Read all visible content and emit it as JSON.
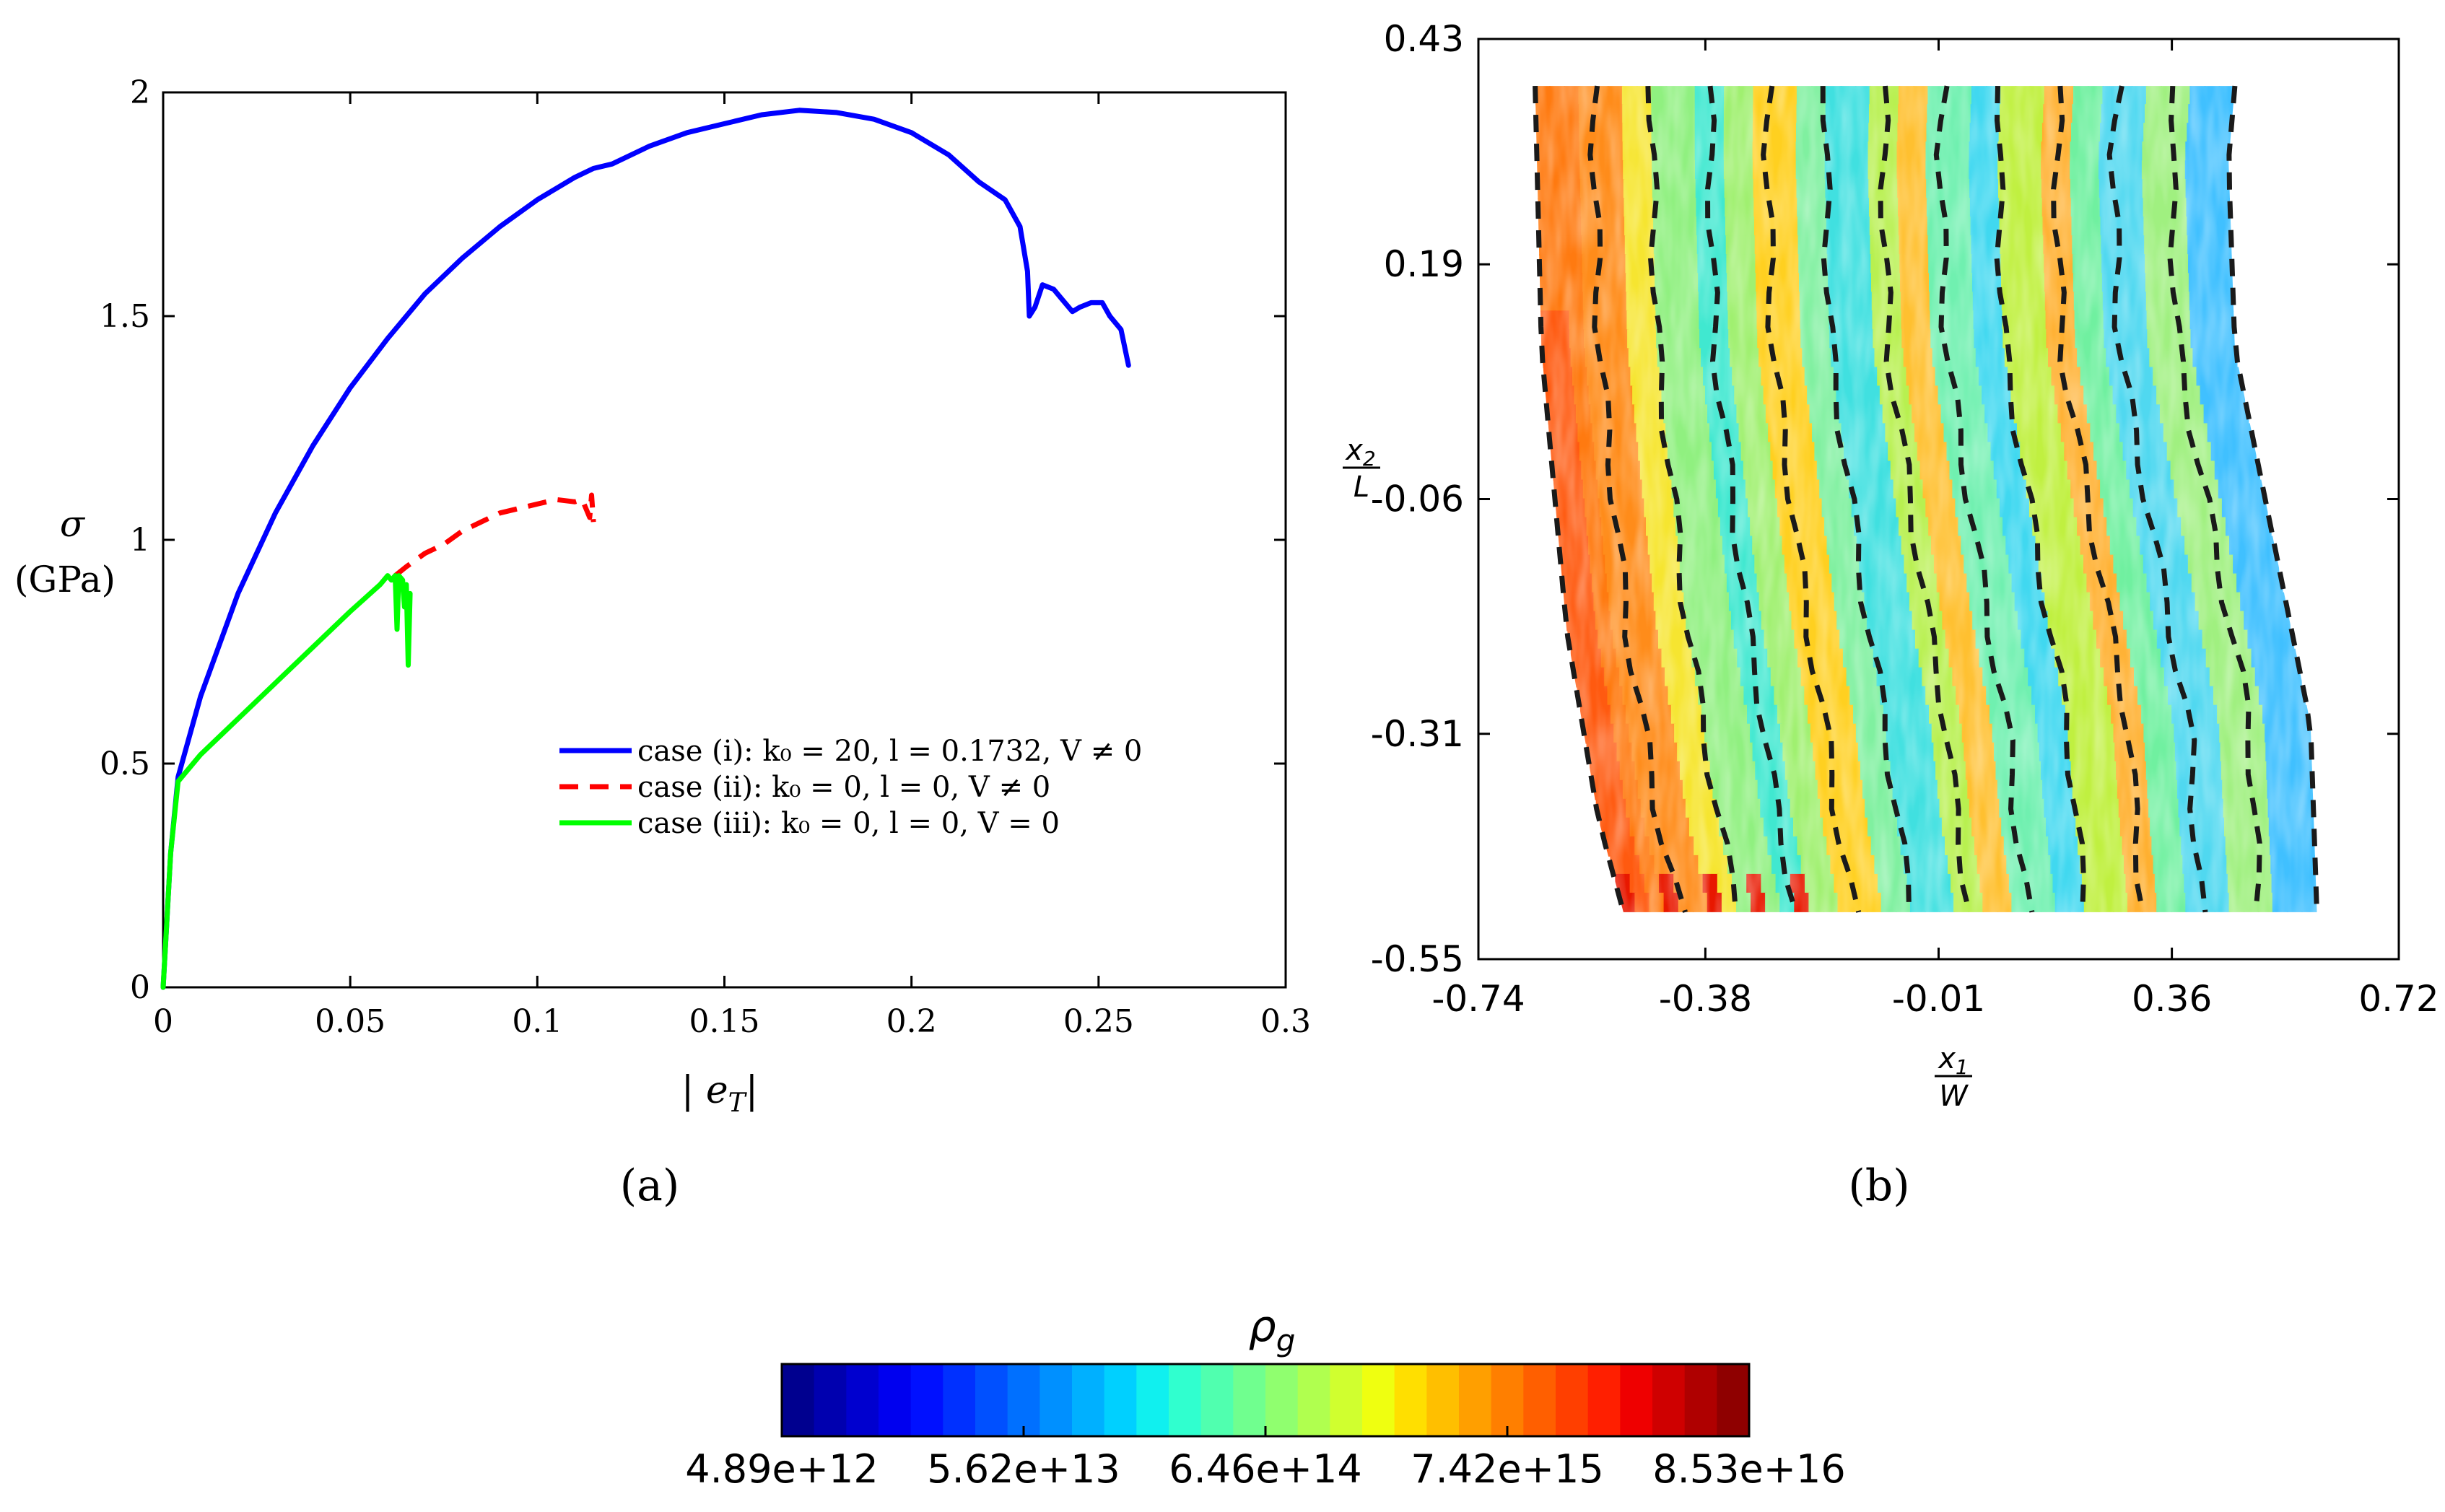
{
  "panel_labels": {
    "a": "(a)",
    "b": "(b)"
  },
  "chart_data": [
    {
      "type": "line",
      "title": "",
      "xlabel": "|e_T|",
      "ylabel": {
        "symbol": "σ",
        "unit": "(GPa)"
      },
      "xlim": [
        0,
        0.3
      ],
      "ylim": [
        0,
        2
      ],
      "xticks": [
        "0",
        "0.05",
        "0.1",
        "0.15",
        "0.2",
        "0.25",
        "0.3"
      ],
      "yticks": [
        "0",
        "0.5",
        "1",
        "1.5",
        "2"
      ],
      "legend_position": "lower-right",
      "series": [
        {
          "name": "case (i): k0 = 20, l = 0.1732, V ≠ 0",
          "legend_label": "case (i):  k₀ = 20, l = 0.1732, V ≠ 0",
          "color": "#0000ff",
          "style": "solid",
          "points": [
            [
              0,
              0
            ],
            [
              0.002,
              0.3
            ],
            [
              0.004,
              0.47
            ],
            [
              0.01,
              0.65
            ],
            [
              0.02,
              0.88
            ],
            [
              0.03,
              1.06
            ],
            [
              0.04,
              1.21
            ],
            [
              0.05,
              1.34
            ],
            [
              0.06,
              1.45
            ],
            [
              0.07,
              1.55
            ],
            [
              0.08,
              1.63
            ],
            [
              0.09,
              1.7
            ],
            [
              0.1,
              1.76
            ],
            [
              0.11,
              1.81
            ],
            [
              0.115,
              1.83
            ],
            [
              0.12,
              1.84
            ],
            [
              0.13,
              1.88
            ],
            [
              0.14,
              1.91
            ],
            [
              0.15,
              1.93
            ],
            [
              0.16,
              1.95
            ],
            [
              0.17,
              1.96
            ],
            [
              0.18,
              1.955
            ],
            [
              0.19,
              1.94
            ],
            [
              0.2,
              1.91
            ],
            [
              0.21,
              1.86
            ],
            [
              0.218,
              1.8
            ],
            [
              0.225,
              1.76
            ],
            [
              0.229,
              1.7
            ],
            [
              0.231,
              1.6
            ],
            [
              0.2315,
              1.5
            ],
            [
              0.233,
              1.52
            ],
            [
              0.235,
              1.57
            ],
            [
              0.238,
              1.56
            ],
            [
              0.24,
              1.54
            ],
            [
              0.243,
              1.51
            ],
            [
              0.245,
              1.52
            ],
            [
              0.248,
              1.53
            ],
            [
              0.251,
              1.53
            ],
            [
              0.253,
              1.5
            ],
            [
              0.256,
              1.47
            ],
            [
              0.258,
              1.39
            ]
          ]
        },
        {
          "name": "case (ii): k0 = 0, l = 0, V ≠ 0",
          "legend_label": "case (ii):  k₀ = 0, l = 0, V ≠ 0",
          "color": "#ff0000",
          "style": "dashed",
          "points": [
            [
              0.062,
              0.92
            ],
            [
              0.065,
              0.94
            ],
            [
              0.07,
              0.97
            ],
            [
              0.075,
              0.99
            ],
            [
              0.08,
              1.02
            ],
            [
              0.085,
              1.04
            ],
            [
              0.09,
              1.06
            ],
            [
              0.095,
              1.07
            ],
            [
              0.1,
              1.08
            ],
            [
              0.105,
              1.09
            ],
            [
              0.11,
              1.085
            ],
            [
              0.112,
              1.09
            ],
            [
              0.114,
              1.05
            ],
            [
              0.1145,
              1.1
            ],
            [
              0.115,
              1.04
            ]
          ]
        },
        {
          "name": "case (iii): k0 = 0, l = 0, V = 0",
          "legend_label": "case (iii):  k₀ = 0, l = 0, V = 0",
          "color": "#00ff00",
          "style": "solid",
          "points": [
            [
              0,
              0
            ],
            [
              0.002,
              0.3
            ],
            [
              0.004,
              0.46
            ],
            [
              0.01,
              0.52
            ],
            [
              0.02,
              0.6
            ],
            [
              0.03,
              0.68
            ],
            [
              0.04,
              0.76
            ],
            [
              0.05,
              0.84
            ],
            [
              0.058,
              0.9
            ],
            [
              0.06,
              0.92
            ],
            [
              0.061,
              0.91
            ],
            [
              0.062,
              0.92
            ],
            [
              0.0625,
              0.8
            ],
            [
              0.063,
              0.92
            ],
            [
              0.064,
              0.91
            ],
            [
              0.0645,
              0.85
            ],
            [
              0.065,
              0.9
            ],
            [
              0.0655,
              0.72
            ],
            [
              0.066,
              0.88
            ]
          ]
        }
      ]
    },
    {
      "type": "heatmap",
      "title": "",
      "xlabel": {
        "numerator": "x1",
        "denominator": "W"
      },
      "ylabel": {
        "numerator": "x2",
        "denominator": "L"
      },
      "xlim": [
        -0.74,
        0.72
      ],
      "ylim": [
        -0.55,
        0.43
      ],
      "xticks": [
        "-0.74",
        "-0.38",
        "-0.01",
        "0.36",
        "0.72"
      ],
      "yticks": [
        "-0.55",
        "-0.31",
        "-0.06",
        "0.19",
        "0.43"
      ],
      "domain_outline": {
        "top_y": 0.38,
        "bottom_y": -0.5,
        "left_edge": [
          [
            -0.65,
            0.38
          ],
          [
            -0.64,
            0.1
          ],
          [
            -0.6,
            -0.2
          ],
          [
            -0.55,
            -0.4
          ],
          [
            -0.51,
            -0.5
          ]
        ],
        "right_edge": [
          [
            0.46,
            0.38
          ],
          [
            0.45,
            0.3
          ],
          [
            0.46,
            0.1
          ],
          [
            0.52,
            -0.1
          ],
          [
            0.58,
            -0.3
          ],
          [
            0.59,
            -0.5
          ]
        ]
      },
      "dashed_contour_lines": 13,
      "scale": "log",
      "colorscale_name": "jet"
    }
  ],
  "colorbar": {
    "title": "ρ_g",
    "tick_labels": [
      "4.89e+12",
      "5.62e+13",
      "6.46e+14",
      "7.42e+15",
      "8.53e+16"
    ],
    "colors": [
      "#00008f",
      "#0000af",
      "#0000cf",
      "#0000ef",
      "#0010ff",
      "#0030ff",
      "#0050ff",
      "#0070ff",
      "#0090ff",
      "#00b0ff",
      "#00d0ff",
      "#10f0ef",
      "#30ffcf",
      "#50ffaf",
      "#70ff8f",
      "#90ff6f",
      "#b0ff4f",
      "#d0ff2f",
      "#efff10",
      "#ffdf00",
      "#ffbf00",
      "#ff9f00",
      "#ff7f00",
      "#ff5f00",
      "#ff3f00",
      "#ff1f00",
      "#ef0000",
      "#cf0000",
      "#af0000",
      "#8f0000"
    ]
  }
}
